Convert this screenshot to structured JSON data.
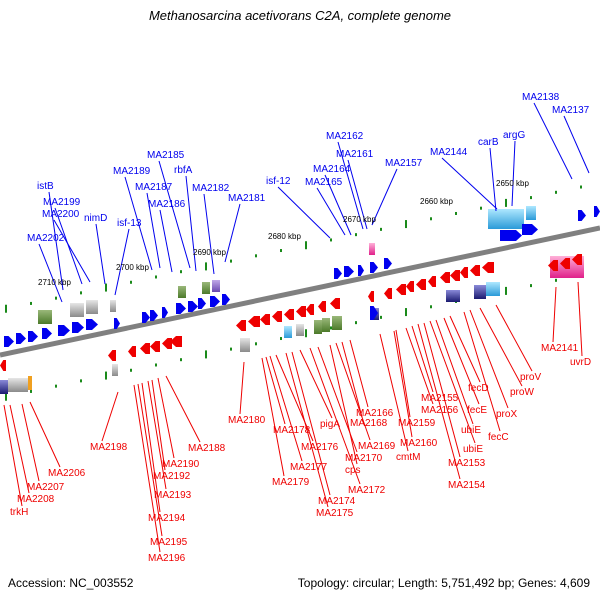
{
  "title": "Methanosarcina acetivorans C2A, complete genome",
  "footer": {
    "accession": "Accession: NC_003552",
    "summary": "Topology: circular; Length: 5,751,492 bp; Genes: 4,609"
  },
  "colors": {
    "forward": "#0000ee",
    "reverse": "#ee0000",
    "backbone": "#808080",
    "tick": "#1a8a1a"
  },
  "scale_labels": [
    "2710 kbp",
    "2700 kbp",
    "2690 kbp",
    "2680 kbp",
    "2670 kbp",
    "2660 kbp",
    "2650 kbp"
  ],
  "forward_genes": [
    "MA2202",
    "istB",
    "MA2199",
    "MA2200",
    "nimD",
    "isf-13",
    "MA2189",
    "MA2187",
    "MA2186",
    "MA2185",
    "rbfA",
    "MA2182",
    "MA2181",
    "isf-12",
    "MA2165",
    "MA2164",
    "MA2162",
    "MA2161",
    "MA2157",
    "MA2144",
    "carB",
    "argG",
    "MA2138",
    "MA2137"
  ],
  "reverse_genes": [
    "MA2198",
    "trkH",
    "MA2208",
    "MA2207",
    "MA2206",
    "MA2196",
    "MA2195",
    "MA2194",
    "MA2193",
    "MA2192",
    "MA2190",
    "MA2188",
    "MA2180",
    "MA2179",
    "MA2178",
    "MA2177",
    "MA2176",
    "MA2175",
    "MA2174",
    "MA2172",
    "pigA",
    "MA2170",
    "cps",
    "MA2169",
    "MA2168",
    "MA2166",
    "cmtM",
    "MA2160",
    "MA2159",
    "MA2156",
    "MA2155",
    "MA2154",
    "MA2153",
    "ubiE",
    "ubiE",
    "fecE",
    "fecD",
    "fecC",
    "proX",
    "proW",
    "proV",
    "MA2141",
    "uvrD"
  ]
}
